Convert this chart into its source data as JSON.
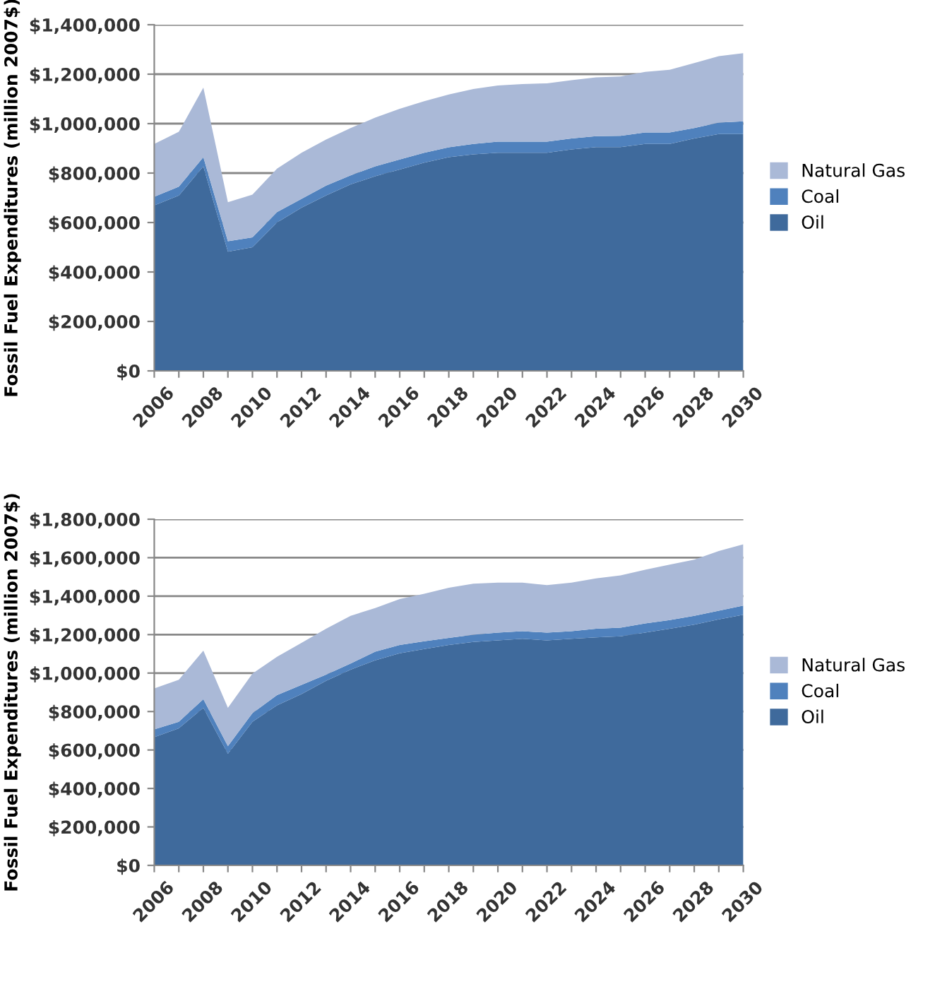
{
  "chart_data": [
    {
      "type": "area",
      "stacked": true,
      "ylabel": "Fossil Fuel Expenditures (million 2007$)",
      "x": [
        2006,
        2007,
        2008,
        2009,
        2010,
        2011,
        2012,
        2013,
        2014,
        2015,
        2016,
        2017,
        2018,
        2019,
        2020,
        2021,
        2022,
        2023,
        2024,
        2025,
        2026,
        2027,
        2028,
        2029,
        2030
      ],
      "series": [
        {
          "name": "Oil",
          "color": "#3f6a9c",
          "values": [
            669000,
            709000,
            827000,
            482000,
            500000,
            600000,
            660000,
            709000,
            754000,
            787000,
            814000,
            842000,
            864000,
            876000,
            882000,
            882000,
            882000,
            896000,
            905000,
            905000,
            918000,
            918000,
            940000,
            958000,
            958000
          ]
        },
        {
          "name": "Coal",
          "color": "#4f81bd",
          "values": [
            35000,
            36000,
            37000,
            42000,
            40000,
            42000,
            36000,
            40000,
            37000,
            40000,
            41000,
            40000,
            40000,
            42000,
            45000,
            45000,
            45000,
            44000,
            44000,
            46000,
            46000,
            46000,
            42000,
            46000,
            51000
          ]
        },
        {
          "name": "Natural Gas",
          "color": "#aab9d7",
          "values": [
            214000,
            222000,
            282000,
            158000,
            173000,
            176000,
            186000,
            187000,
            191000,
            197000,
            205000,
            209000,
            214000,
            222000,
            227000,
            233000,
            236000,
            236000,
            238000,
            240000,
            245000,
            254000,
            263000,
            269000,
            276000
          ]
        }
      ],
      "xlim": [
        2006,
        2030
      ],
      "xticks": [
        2006,
        {
          "value": 2007,
          "label": null
        },
        2008,
        {
          "value": 2009,
          "label": null
        },
        2010,
        {
          "value": 2011,
          "label": null
        },
        2012,
        {
          "value": 2013,
          "label": null
        },
        2014,
        {
          "value": 2015,
          "label": null
        },
        2016,
        {
          "value": 2017,
          "label": null
        },
        2018,
        {
          "value": 2019,
          "label": null
        },
        2020,
        {
          "value": 2021,
          "label": null
        },
        2022,
        {
          "value": 2023,
          "label": null
        },
        2024,
        {
          "value": 2025,
          "label": null
        },
        2026,
        {
          "value": 2027,
          "label": null
        },
        2028,
        {
          "value": 2029,
          "label": null
        },
        2030
      ],
      "ylim": [
        0,
        1400000
      ],
      "yticks": [
        {
          "value": 0,
          "label": "$0"
        },
        {
          "value": 200000,
          "label": "$200,000"
        },
        {
          "value": 400000,
          "label": "$400,000"
        },
        {
          "value": 600000,
          "label": "$600,000"
        },
        {
          "value": 800000,
          "label": "$800,000"
        },
        {
          "value": 1000000,
          "label": "$1,000,000"
        },
        {
          "value": 1200000,
          "label": "$1,200,000"
        },
        {
          "value": 1400000,
          "label": "$1,400,000"
        }
      ],
      "grid": "y",
      "legend": "right"
    },
    {
      "type": "area",
      "stacked": true,
      "ylabel": "Fossil Fuel Expenditures (million 2007$)",
      "x": [
        2006,
        2007,
        2008,
        2009,
        2010,
        2011,
        2012,
        2013,
        2014,
        2015,
        2016,
        2017,
        2018,
        2019,
        2020,
        2021,
        2022,
        2023,
        2024,
        2025,
        2026,
        2027,
        2028,
        2029,
        2030
      ],
      "series": [
        {
          "name": "Oil",
          "color": "#3f6a9c",
          "values": [
            667000,
            713000,
            819000,
            580000,
            747000,
            832000,
            891000,
            960000,
            1018000,
            1066000,
            1103000,
            1125000,
            1146000,
            1162000,
            1170000,
            1178000,
            1170000,
            1178000,
            1186000,
            1191000,
            1210000,
            1231000,
            1252000,
            1279000,
            1303000
          ]
        },
        {
          "name": "Coal",
          "color": "#4f81bd",
          "values": [
            40000,
            34000,
            45000,
            40000,
            45000,
            53000,
            48000,
            32000,
            32000,
            45000,
            43000,
            40000,
            37000,
            37000,
            40000,
            40000,
            40000,
            40000,
            45000,
            45000,
            48000,
            45000,
            46000,
            45000,
            48000
          ]
        },
        {
          "name": "Natural Gas",
          "color": "#aab9d7",
          "values": [
            213000,
            218000,
            253000,
            199000,
            205000,
            200000,
            218000,
            239000,
            248000,
            227000,
            239000,
            247000,
            261000,
            266000,
            260000,
            252000,
            247000,
            252000,
            261000,
            272000,
            279000,
            288000,
            292000,
            311000,
            319000
          ]
        }
      ],
      "xlim": [
        2006,
        2030
      ],
      "xticks": [
        2006,
        {
          "value": 2007,
          "label": null
        },
        2008,
        {
          "value": 2009,
          "label": null
        },
        2010,
        {
          "value": 2011,
          "label": null
        },
        2012,
        {
          "value": 2013,
          "label": null
        },
        2014,
        {
          "value": 2015,
          "label": null
        },
        2016,
        {
          "value": 2017,
          "label": null
        },
        2018,
        {
          "value": 2019,
          "label": null
        },
        2020,
        {
          "value": 2021,
          "label": null
        },
        2022,
        {
          "value": 2023,
          "label": null
        },
        2024,
        {
          "value": 2025,
          "label": null
        },
        2026,
        {
          "value": 2027,
          "label": null
        },
        2028,
        {
          "value": 2029,
          "label": null
        },
        2030
      ],
      "ylim": [
        0,
        1800000
      ],
      "yticks": [
        {
          "value": 0,
          "label": "$0"
        },
        {
          "value": 200000,
          "label": "$200,000"
        },
        {
          "value": 400000,
          "label": "$400,000"
        },
        {
          "value": 600000,
          "label": "$600,000"
        },
        {
          "value": 800000,
          "label": "$800,000"
        },
        {
          "value": 1000000,
          "label": "$1,000,000"
        },
        {
          "value": 1200000,
          "label": "$1,200,000"
        },
        {
          "value": 1400000,
          "label": "$1,400,000"
        },
        {
          "value": 1600000,
          "label": "$1,600,000"
        },
        {
          "value": 1800000,
          "label": "$1,800,000"
        }
      ],
      "grid": "y",
      "legend": "right"
    }
  ]
}
